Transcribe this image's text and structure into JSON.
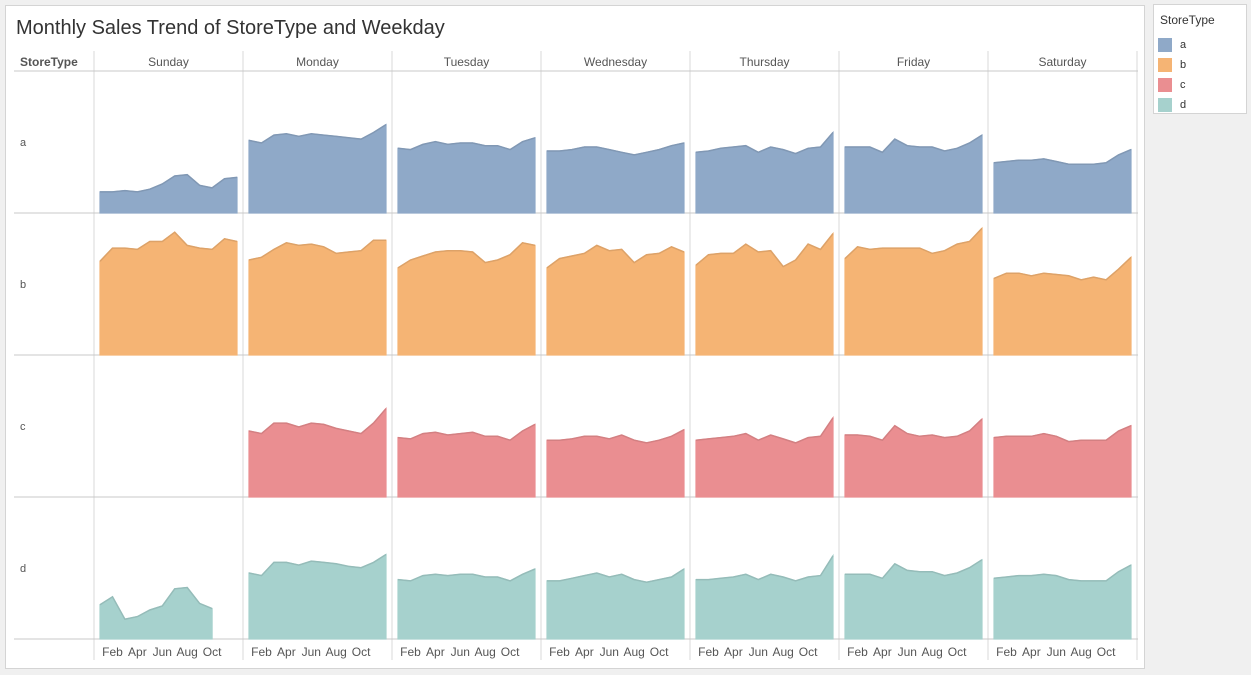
{
  "title": "Monthly Sales Trend of StoreType and Weekday",
  "legend": {
    "title": "StoreType",
    "items": [
      {
        "label": "a",
        "color": "#8fa9c8"
      },
      {
        "label": "b",
        "color": "#f5b474"
      },
      {
        "label": "c",
        "color": "#ea8e91"
      },
      {
        "label": "d",
        "color": "#a6d1cd"
      }
    ]
  },
  "chart_data": {
    "type": "area",
    "row_header": "StoreType",
    "columns": [
      "Sunday",
      "Monday",
      "Tuesday",
      "Wednesday",
      "Thursday",
      "Friday",
      "Saturday"
    ],
    "rows": [
      "a",
      "b",
      "c",
      "d"
    ],
    "x_ticks": [
      "Feb",
      "Apr",
      "Jun",
      "Aug",
      "Oct"
    ],
    "months": [
      1,
      2,
      3,
      4,
      5,
      6,
      7,
      8,
      9,
      10,
      11,
      12
    ],
    "y_axis_shown": false,
    "grid": false,
    "legend_position": "top-right",
    "series": {
      "a": {
        "Sunday": [
          0.16,
          0.16,
          0.17,
          0.16,
          0.18,
          0.22,
          0.28,
          0.29,
          0.21,
          0.19,
          0.26,
          0.27
        ],
        "Monday": [
          0.55,
          0.53,
          0.59,
          0.6,
          0.58,
          0.6,
          0.59,
          0.58,
          0.57,
          0.56,
          0.61,
          0.67
        ],
        "Tuesday": [
          0.49,
          0.48,
          0.52,
          0.54,
          0.52,
          0.53,
          0.53,
          0.51,
          0.51,
          0.48,
          0.54,
          0.57
        ],
        "Wednesday": [
          0.47,
          0.47,
          0.48,
          0.5,
          0.5,
          0.48,
          0.46,
          0.44,
          0.46,
          0.48,
          0.51,
          0.53
        ],
        "Thursday": [
          0.46,
          0.47,
          0.49,
          0.5,
          0.51,
          0.46,
          0.5,
          0.48,
          0.45,
          0.49,
          0.5,
          0.61
        ],
        "Friday": [
          0.5,
          0.5,
          0.5,
          0.46,
          0.56,
          0.51,
          0.5,
          0.5,
          0.47,
          0.49,
          0.53,
          0.59
        ],
        "Saturday": [
          0.38,
          0.39,
          0.4,
          0.4,
          0.41,
          0.39,
          0.37,
          0.37,
          0.37,
          0.38,
          0.44,
          0.48
        ]
      },
      "b": {
        "Sunday": [
          0.71,
          0.81,
          0.81,
          0.8,
          0.86,
          0.86,
          0.93,
          0.83,
          0.81,
          0.8,
          0.88,
          0.86
        ],
        "Monday": [
          0.72,
          0.74,
          0.8,
          0.85,
          0.83,
          0.84,
          0.82,
          0.77,
          0.78,
          0.79,
          0.87,
          0.87
        ],
        "Tuesday": [
          0.66,
          0.72,
          0.75,
          0.78,
          0.79,
          0.79,
          0.78,
          0.7,
          0.72,
          0.76,
          0.85,
          0.83
        ],
        "Wednesday": [
          0.66,
          0.73,
          0.75,
          0.77,
          0.83,
          0.79,
          0.8,
          0.7,
          0.76,
          0.77,
          0.82,
          0.78
        ],
        "Thursday": [
          0.68,
          0.76,
          0.77,
          0.77,
          0.84,
          0.78,
          0.79,
          0.67,
          0.72,
          0.84,
          0.8,
          0.92
        ],
        "Friday": [
          0.73,
          0.82,
          0.8,
          0.81,
          0.81,
          0.81,
          0.81,
          0.77,
          0.79,
          0.84,
          0.86,
          0.96
        ],
        "Saturday": [
          0.58,
          0.62,
          0.62,
          0.6,
          0.62,
          0.61,
          0.6,
          0.57,
          0.59,
          0.57,
          0.65,
          0.74
        ]
      },
      "c": {
        "Sunday": [],
        "Monday": [
          0.5,
          0.48,
          0.56,
          0.56,
          0.53,
          0.56,
          0.55,
          0.52,
          0.5,
          0.48,
          0.56,
          0.67
        ],
        "Tuesday": [
          0.45,
          0.44,
          0.48,
          0.49,
          0.47,
          0.48,
          0.49,
          0.46,
          0.46,
          0.43,
          0.5,
          0.55
        ],
        "Wednesday": [
          0.43,
          0.43,
          0.44,
          0.46,
          0.46,
          0.44,
          0.47,
          0.43,
          0.41,
          0.43,
          0.46,
          0.51
        ],
        "Thursday": [
          0.43,
          0.44,
          0.45,
          0.46,
          0.48,
          0.43,
          0.47,
          0.44,
          0.41,
          0.45,
          0.46,
          0.6
        ],
        "Friday": [
          0.47,
          0.47,
          0.46,
          0.43,
          0.54,
          0.48,
          0.46,
          0.47,
          0.45,
          0.46,
          0.5,
          0.59
        ],
        "Saturday": [
          0.45,
          0.46,
          0.46,
          0.46,
          0.48,
          0.46,
          0.42,
          0.43,
          0.43,
          0.43,
          0.5,
          0.54
        ]
      },
      "d": {
        "Sunday": [
          0.26,
          0.32,
          0.15,
          0.17,
          0.22,
          0.25,
          0.38,
          0.39,
          0.27,
          0.23,
          null,
          null
        ],
        "Monday": [
          0.5,
          0.48,
          0.58,
          0.58,
          0.56,
          0.59,
          0.58,
          0.57,
          0.55,
          0.54,
          0.58,
          0.64
        ],
        "Tuesday": [
          0.45,
          0.44,
          0.48,
          0.49,
          0.48,
          0.49,
          0.49,
          0.47,
          0.47,
          0.44,
          0.49,
          0.53
        ],
        "Wednesday": [
          0.44,
          0.44,
          0.46,
          0.48,
          0.5,
          0.47,
          0.49,
          0.45,
          0.43,
          0.45,
          0.47,
          0.53
        ],
        "Thursday": [
          0.45,
          0.45,
          0.46,
          0.47,
          0.49,
          0.45,
          0.49,
          0.47,
          0.44,
          0.47,
          0.48,
          0.63
        ],
        "Friday": [
          0.49,
          0.49,
          0.49,
          0.46,
          0.57,
          0.52,
          0.51,
          0.51,
          0.48,
          0.5,
          0.54,
          0.6
        ],
        "Saturday": [
          0.46,
          0.47,
          0.48,
          0.48,
          0.49,
          0.48,
          0.45,
          0.44,
          0.44,
          0.44,
          0.51,
          0.56
        ]
      }
    }
  }
}
